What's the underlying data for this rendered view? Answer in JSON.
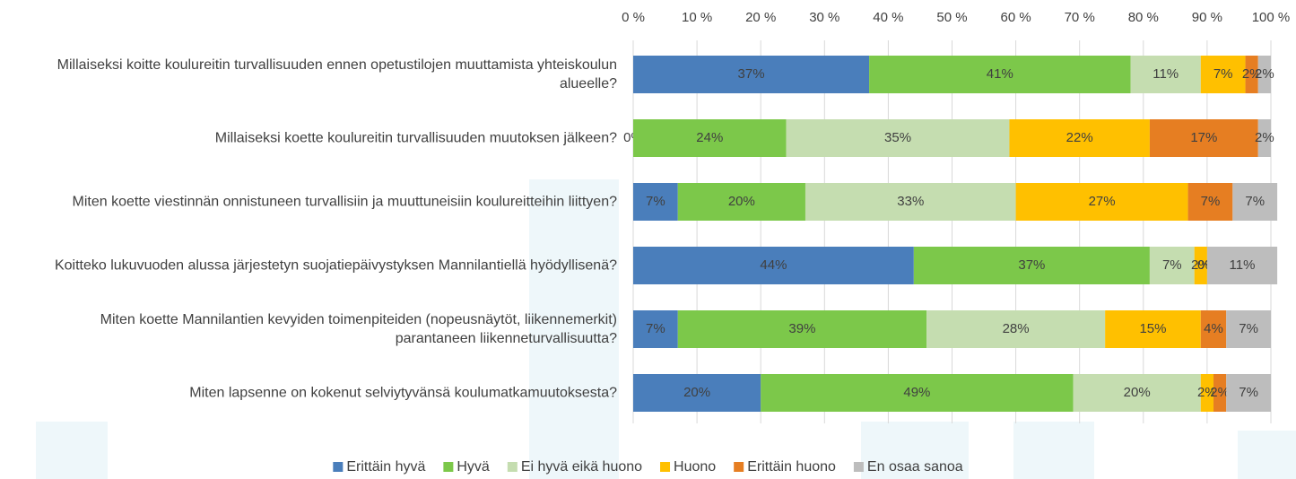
{
  "chart_data": {
    "type": "stacked-barh",
    "categories": [
      "Millaiseksi koitte koulureitin turvallisuuden ennen opetustilojen muuttamista yhteiskoulun alueelle?",
      "Millaiseksi koette koulureitin turvallisuuden muutoksen jälkeen?",
      "Miten koette viestinnän onnistuneen turvallisiin ja muuttuneisiin koulureitteihin liittyen?",
      "Koitteko lukuvuoden alussa järjestetyn suojatiepäivystyksen Mannilantiellä hyödyllisenä?",
      "Miten koette Mannilantien kevyiden toimenpiteiden (nopeusnäytöt, liikennemerkit) parantaneen liikenneturvallisuutta?",
      "Miten lapsenne on kokenut selviytyvänsä koulumatkamuutoksesta?"
    ],
    "series": [
      {
        "name": "Erittäin hyvä",
        "color": "#4a7ebb",
        "values": [
          37,
          0,
          7,
          44,
          7,
          20
        ],
        "value_labels": [
          "37%",
          "0%",
          "7%",
          "44%",
          "7%",
          "20%"
        ]
      },
      {
        "name": "Hyvä",
        "color": "#7cc84a",
        "values": [
          41,
          24,
          20,
          37,
          39,
          49
        ],
        "value_labels": [
          "41%",
          "24%",
          "20%",
          "37%",
          "39%",
          "49%"
        ]
      },
      {
        "name": "Ei hyvä eikä huono",
        "color": "#c5ddb0",
        "values": [
          11,
          35,
          33,
          7,
          28,
          20
        ],
        "value_labels": [
          "11%",
          "35%",
          "33%",
          "7%",
          "28%",
          "20%"
        ]
      },
      {
        "name": "Huono",
        "color": "#ffc000",
        "values": [
          7,
          22,
          27,
          2,
          15,
          2
        ],
        "value_labels": [
          "7%",
          "22%",
          "27%",
          "2%",
          "15%",
          "2%"
        ]
      },
      {
        "name": "Erittäin huono",
        "color": "#e67e22",
        "values": [
          2,
          17,
          7,
          0,
          4,
          2
        ],
        "value_labels": [
          "2%",
          "17%",
          "7%",
          "0%",
          "4%",
          "2%"
        ]
      },
      {
        "name": "En osaa sanoa",
        "color": "#bdbdbd",
        "values": [
          2,
          2,
          7,
          11,
          7,
          7
        ],
        "value_labels": [
          "2%",
          "2%",
          "7%",
          "11%",
          "7%",
          "7%"
        ]
      }
    ],
    "xlim": [
      0,
      100
    ],
    "xticks": [
      {
        "value": 0,
        "label": "0 %"
      },
      {
        "value": 10,
        "label": "10 %"
      },
      {
        "value": 20,
        "label": "20 %"
      },
      {
        "value": 30,
        "label": "30 %"
      },
      {
        "value": 40,
        "label": "40 %"
      },
      {
        "value": 50,
        "label": "50 %"
      },
      {
        "value": 60,
        "label": "60 %"
      },
      {
        "value": 70,
        "label": "70 %"
      },
      {
        "value": 80,
        "label": "80 %"
      },
      {
        "value": 90,
        "label": "90 %"
      },
      {
        "value": 100,
        "label": "100 %"
      }
    ],
    "grid": true,
    "legend": "bottom"
  }
}
